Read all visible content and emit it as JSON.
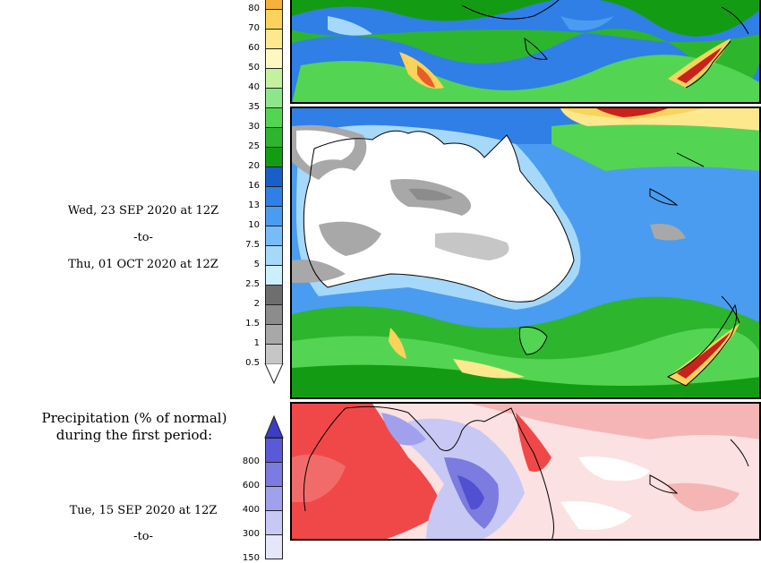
{
  "top_panel": {
    "period": {
      "start": "Wed, 23 SEP 2020 at 12Z",
      "separator": "-to-",
      "end": "Thu, 01 OCT 2020 at 12Z"
    },
    "colorbar": {
      "unit_note": "",
      "levels": [
        {
          "label": "80",
          "color": "#f5b03b"
        },
        {
          "label": "70",
          "color": "#fbd25a"
        },
        {
          "label": "60",
          "color": "#fde88e"
        },
        {
          "label": "50",
          "color": "#fcf8c0"
        },
        {
          "label": "40",
          "color": "#c5f0a0"
        },
        {
          "label": "35",
          "color": "#8ee68a"
        },
        {
          "label": "30",
          "color": "#53d553"
        },
        {
          "label": "25",
          "color": "#2db62d"
        },
        {
          "label": "20",
          "color": "#139c13"
        },
        {
          "label": "16",
          "color": "#1a5fc8"
        },
        {
          "label": "13",
          "color": "#2f7fe6"
        },
        {
          "label": "10",
          "color": "#4a9cf0"
        },
        {
          "label": "7.5",
          "color": "#78bcf7"
        },
        {
          "label": "5",
          "color": "#a6d8fa"
        },
        {
          "label": "2.5",
          "color": "#cdeffd"
        },
        {
          "label": "2",
          "color": "#6e6e6e"
        },
        {
          "label": "1.5",
          "color": "#8c8c8c"
        },
        {
          "label": "1",
          "color": "#a8a8a8"
        },
        {
          "label": "0.5",
          "color": "#c6c6c6"
        }
      ]
    }
  },
  "bottom_panel": {
    "title_line1": "Precipitation (% of normal)",
    "title_line2": "during the first period:",
    "period": {
      "start": "Tue, 15 SEP 2020 at 12Z",
      "separator": "-to-"
    },
    "colorbar": {
      "levels": [
        {
          "label": "800",
          "color": "#5a5ad6"
        },
        {
          "label": "600",
          "color": "#7b7be0"
        },
        {
          "label": "400",
          "color": "#a0a0ec"
        },
        {
          "label": "300",
          "color": "#c8c8f5"
        },
        {
          "label": "150",
          "color": "#e6e6fb"
        }
      ]
    }
  },
  "colors": {
    "ocean_top": "#3a7ee0",
    "land_dry": "#ffffff",
    "pct_high": "#f04848",
    "pct_low": "#5050d0"
  }
}
